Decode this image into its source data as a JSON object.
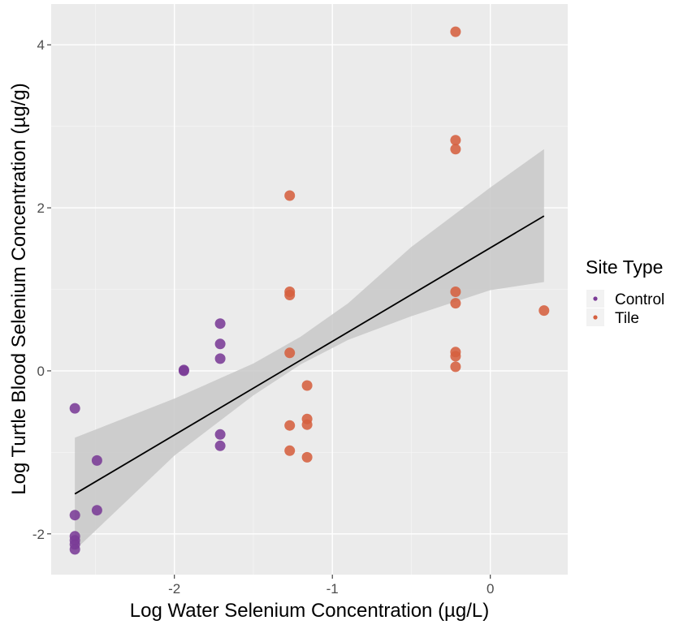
{
  "chart_data": {
    "type": "scatter",
    "xlabel": "Log Water Selenium Concentration (µg/L)",
    "ylabel": "Log Turtle Blood Selenium Concentration (µg/g)",
    "xlim": [
      -2.78,
      0.49
    ],
    "ylim": [
      -2.5,
      4.5
    ],
    "x_ticks": [
      -2,
      -1,
      0
    ],
    "y_ticks": [
      -2,
      0,
      2,
      4
    ],
    "grid": true,
    "legend": {
      "title": "Site Type",
      "position": "right"
    },
    "series": [
      {
        "name": "Control",
        "color": "#7a3b96",
        "points": [
          [
            -2.63,
            -0.46
          ],
          [
            -2.63,
            -1.77
          ],
          [
            -2.63,
            -2.03
          ],
          [
            -2.63,
            -2.08
          ],
          [
            -2.63,
            -2.13
          ],
          [
            -2.63,
            -2.19
          ],
          [
            -2.49,
            -1.1
          ],
          [
            -2.49,
            -1.71
          ],
          [
            -1.94,
            0.0
          ],
          [
            -1.94,
            0.01
          ],
          [
            -1.71,
            0.58
          ],
          [
            -1.71,
            0.33
          ],
          [
            -1.71,
            0.15
          ],
          [
            -1.71,
            -0.78
          ],
          [
            -1.71,
            -0.92
          ]
        ]
      },
      {
        "name": "Tile",
        "color": "#d5603f",
        "points": [
          [
            -1.27,
            2.15
          ],
          [
            -1.27,
            0.97
          ],
          [
            -1.27,
            0.93
          ],
          [
            -1.27,
            0.22
          ],
          [
            -1.27,
            -0.67
          ],
          [
            -1.27,
            -0.98
          ],
          [
            -1.16,
            -0.18
          ],
          [
            -1.16,
            -0.59
          ],
          [
            -1.16,
            -0.66
          ],
          [
            -1.16,
            -1.06
          ],
          [
            -0.22,
            4.16
          ],
          [
            -0.22,
            2.83
          ],
          [
            -0.22,
            2.72
          ],
          [
            -0.22,
            0.97
          ],
          [
            -0.22,
            0.83
          ],
          [
            -0.22,
            0.23
          ],
          [
            -0.22,
            0.18
          ],
          [
            -0.22,
            0.05
          ],
          [
            0.34,
            0.74
          ]
        ]
      }
    ],
    "regression": {
      "color": "#000000",
      "band_color": "#c8c8c8",
      "line": [
        [
          -2.63,
          -1.51
        ],
        [
          0.34,
          1.9
        ]
      ],
      "band": [
        [
          -2.63,
          -0.82,
          -2.2
        ],
        [
          -2.0,
          -0.34,
          -1.04
        ],
        [
          -1.5,
          0.09,
          -0.3
        ],
        [
          -1.2,
          0.42,
          0.08
        ],
        [
          -0.9,
          0.83,
          0.38
        ],
        [
          -0.5,
          1.52,
          0.67
        ],
        [
          0.0,
          2.25,
          0.99
        ],
        [
          0.34,
          2.72,
          1.09
        ]
      ]
    }
  }
}
